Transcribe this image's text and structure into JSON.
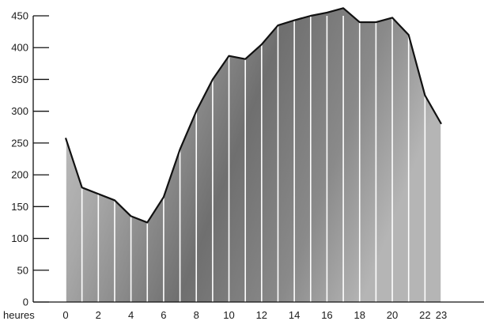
{
  "chart_data": {
    "type": "area",
    "title": "",
    "xlabel": "heures",
    "ylabel": "",
    "x": [
      0,
      1,
      2,
      3,
      4,
      5,
      6,
      7,
      8,
      9,
      10,
      11,
      12,
      13,
      14,
      15,
      16,
      17,
      18,
      19,
      20,
      21,
      22,
      23
    ],
    "series": [
      {
        "values": [
          258,
          180,
          170,
          160,
          135,
          125,
          165,
          240,
          300,
          350,
          387,
          382,
          405,
          435,
          443,
          450,
          455,
          462,
          440,
          440,
          447,
          420,
          325,
          280
        ]
      }
    ],
    "xlim": [
      0,
      23
    ],
    "ylim": [
      0,
      450
    ],
    "y_ticks": [
      0,
      50,
      100,
      150,
      200,
      250,
      300,
      350,
      400,
      450
    ],
    "x_ticks": [
      0,
      2,
      4,
      6,
      8,
      10,
      12,
      14,
      16,
      18,
      20,
      22,
      23
    ],
    "grid": false,
    "fill_note": "photo",
    "colors": {
      "fill": "#9a9a9a",
      "line": "#111111",
      "hour_lines": "#ffffff"
    }
  }
}
